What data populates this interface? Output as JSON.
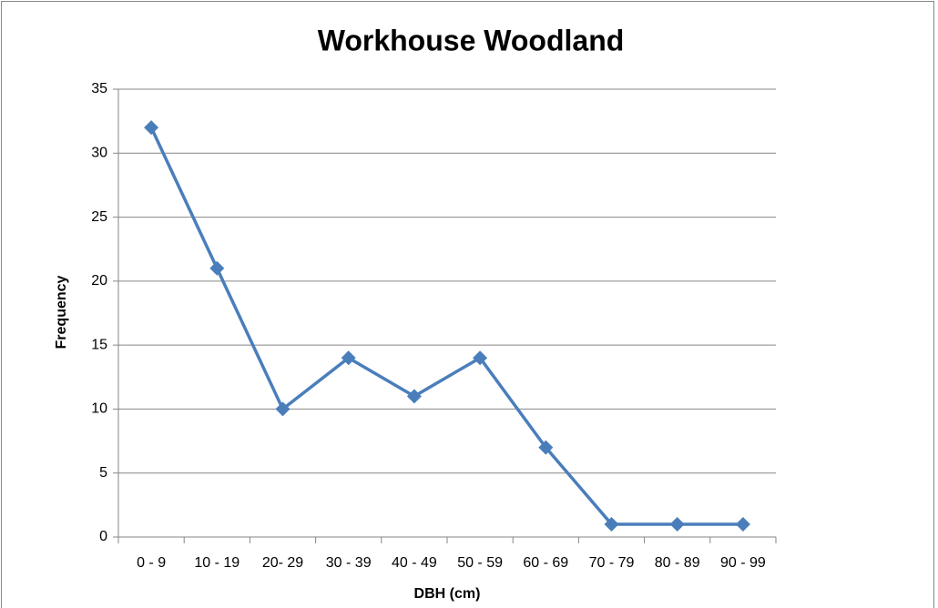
{
  "chart_data": {
    "type": "line",
    "title": "Workhouse Woodland",
    "x_label": "DBH (cm)",
    "y_label": "Frequency",
    "categories": [
      "0 - 9",
      "10 - 19",
      "20- 29",
      "30 - 39",
      "40 - 49",
      "50 - 59",
      "60 - 69",
      "70 - 79",
      "80 - 89",
      "90 - 99"
    ],
    "values": [
      32,
      21,
      10,
      14,
      11,
      14,
      7,
      1,
      1,
      1
    ],
    "color": "#4a7ebb",
    "marker": "diamond",
    "ylim": [
      0,
      35
    ],
    "yticks": [
      0,
      5,
      10,
      15,
      20,
      25,
      30,
      35
    ],
    "grid": true
  }
}
